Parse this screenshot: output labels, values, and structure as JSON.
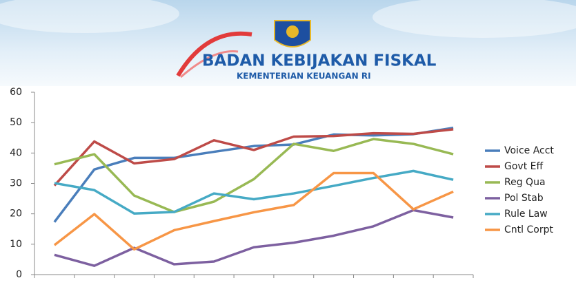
{
  "header": {
    "title": "BADAN KEBIJAKAN FISKAL",
    "subtitle": "KEMENTERIAN KEUANGAN RI"
  },
  "chart_data": {
    "type": "line",
    "categories": [
      null,
      null,
      null,
      null,
      null,
      null,
      null,
      null,
      null,
      null,
      null
    ],
    "series": [
      {
        "name": "Voice Acct",
        "color": "#4a7ebb",
        "values": [
          17.3,
          34.6,
          38.4,
          38.4,
          40.4,
          42.3,
          42.8,
          46.1,
          45.8,
          46.2,
          48.3
        ]
      },
      {
        "name": "Govt Eff",
        "color": "#be4b48",
        "values": [
          29.3,
          43.8,
          36.6,
          38.0,
          44.2,
          41.0,
          45.4,
          45.6,
          46.5,
          46.3,
          47.8
        ]
      },
      {
        "name": "Reg Qua",
        "color": "#98b954",
        "values": [
          36.3,
          39.6,
          26.0,
          20.6,
          24.0,
          31.4,
          43.0,
          40.7,
          44.6,
          43.0,
          39.6
        ]
      },
      {
        "name": "Pol Stab",
        "color": "#7d60a0",
        "values": [
          6.5,
          2.9,
          8.8,
          3.4,
          4.3,
          9.0,
          10.5,
          12.8,
          15.9,
          21.2,
          18.8
        ]
      },
      {
        "name": "Rule Law",
        "color": "#46aac5",
        "values": [
          30.1,
          27.8,
          20.1,
          20.6,
          26.7,
          24.8,
          26.7,
          29.2,
          31.8,
          34.1,
          31.2
        ]
      },
      {
        "name": "Cntl Corpt",
        "color": "#f79646",
        "values": [
          9.7,
          19.9,
          8.3,
          14.6,
          17.6,
          20.5,
          22.9,
          33.4,
          33.4,
          21.5,
          27.3
        ]
      }
    ],
    "ylim": [
      0,
      60
    ],
    "yticks": [
      0,
      10,
      20,
      30,
      40,
      50,
      60
    ],
    "grid": false,
    "legend": "right"
  }
}
